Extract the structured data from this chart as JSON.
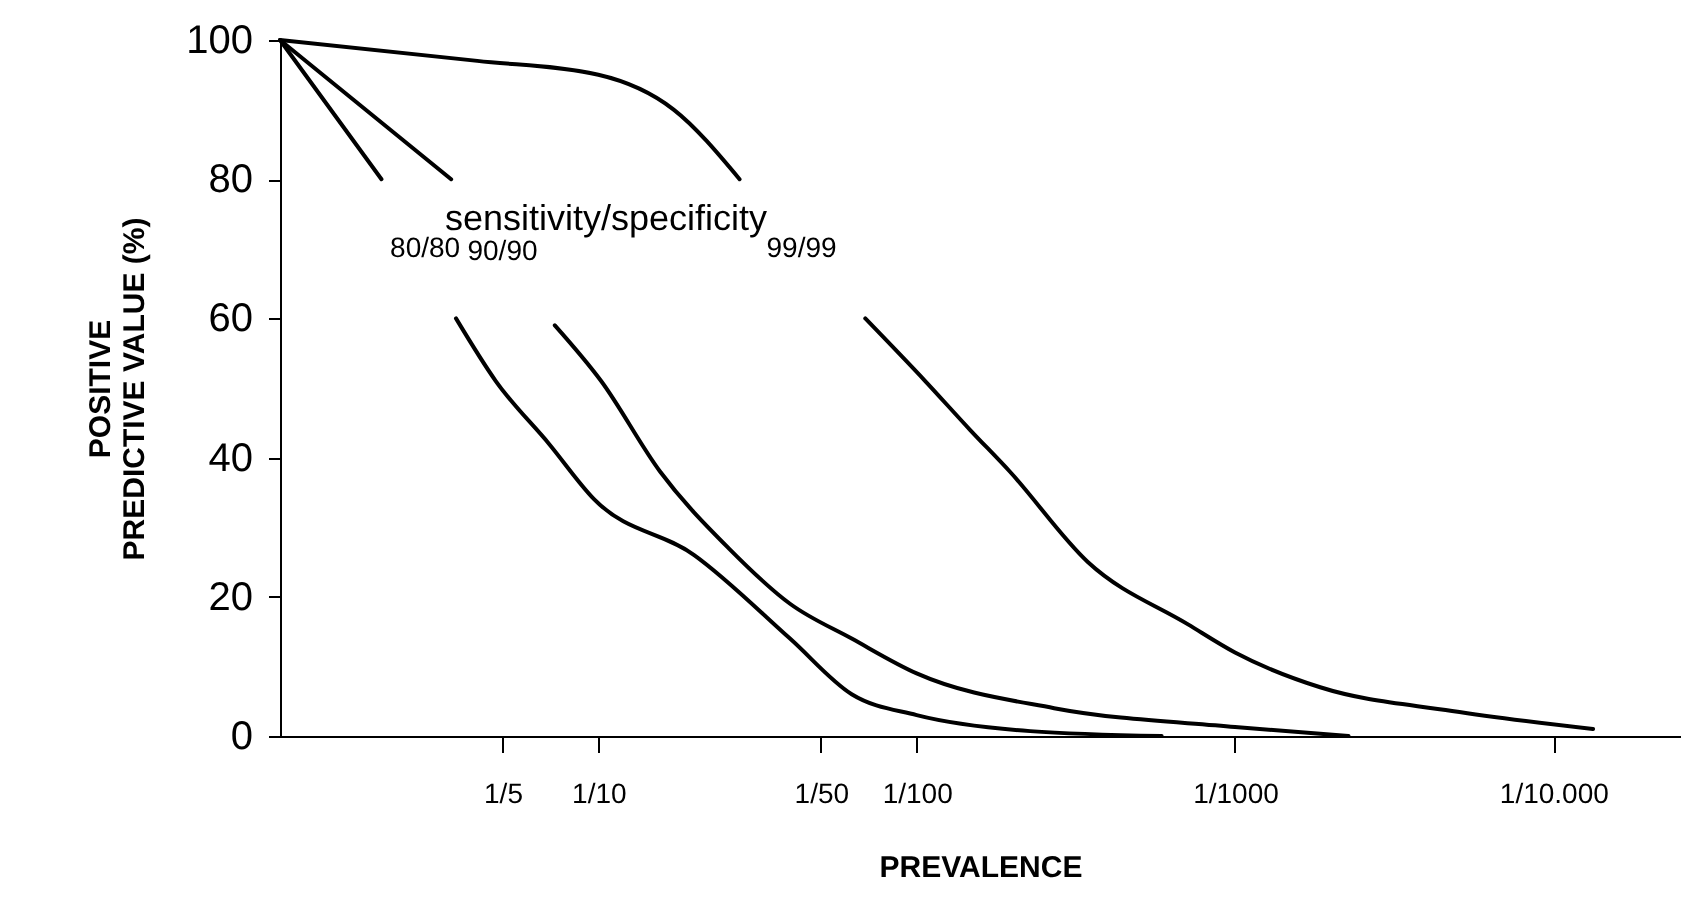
{
  "chart_data": {
    "type": "line",
    "xlabel": "PREVALENCE",
    "ylabel": "POSITIVE\nPREDICTIVE VALUE (%)",
    "annotations": [
      "sensitivity/specificity"
    ],
    "series": [
      {
        "name": "80/80",
        "color": "#000000",
        "x": [
          1,
          0.48,
          0.35,
          0.28,
          0.21,
          0.143,
          0.103,
          0.05,
          0.025,
          0.016,
          0.01,
          0.0044,
          0.0017
        ],
        "values": [
          100,
          80,
          null,
          60,
          51,
          42,
          34,
          26,
          14,
          6,
          3,
          0.7,
          0
        ]
      },
      {
        "name": "90/90",
        "color": "#000000",
        "x": [
          1,
          0.29,
          0.2,
          0.137,
          0.098,
          0.064,
          0.039,
          0.025,
          0.016,
          0.01,
          0.0037,
          0.001,
          0.00044
        ],
        "values": [
          100,
          80,
          null,
          59,
          51,
          38,
          27,
          19,
          14,
          9,
          4,
          1.3,
          0
        ]
      },
      {
        "name": "99/99",
        "color": "#000000",
        "x": [
          1,
          0.24,
          0.1,
          0.058,
          0.036,
          0.023,
          0.0145,
          0.0094,
          0.0068,
          0.0051,
          0.0029,
          0.0014,
          0.001,
          0.00054,
          0.000208,
          7.5e-05
        ],
        "values": [
          100,
          97,
          95,
          90,
          80,
          null,
          60,
          51,
          44,
          38,
          25,
          16,
          12,
          7,
          3.6,
          1
        ]
      }
    ],
    "xlim": [
      1,
      4e-05
    ],
    "xticks": [
      {
        "value": 0.2,
        "label": "1/5"
      },
      {
        "value": 0.1,
        "label": "1/10"
      },
      {
        "value": 0.02,
        "label": "1/50"
      },
      {
        "value": 0.01,
        "label": "1/100"
      },
      {
        "value": 0.001,
        "label": "1/1000"
      },
      {
        "value": 0.0001,
        "label": "1/10.000"
      }
    ],
    "ylim": [
      0,
      100
    ],
    "yticks": [
      0,
      20,
      40,
      60,
      80,
      100
    ],
    "log": "x",
    "grid": false,
    "marker": "none",
    "line_style": "solid"
  }
}
